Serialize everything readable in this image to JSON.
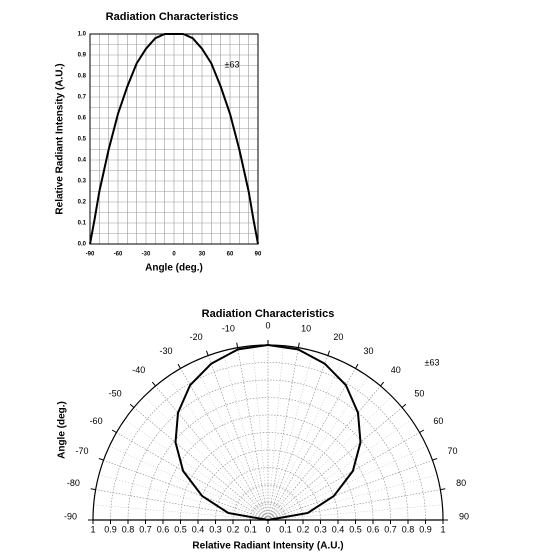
{
  "chart_data": [
    {
      "type": "line",
      "title": "Radiation Characteristics",
      "xlabel": "Angle (deg.)",
      "ylabel": "Relative Radiant Intensity (A.U.)",
      "annotation": "±63",
      "x": [
        -90,
        -85,
        -80,
        -70,
        -60,
        -50,
        -40,
        -30,
        -20,
        -10,
        0,
        10,
        20,
        30,
        40,
        50,
        60,
        70,
        80,
        85,
        90
      ],
      "series": [
        {
          "color": "#000000",
          "values": [
            0,
            0.12,
            0.25,
            0.45,
            0.62,
            0.75,
            0.86,
            0.93,
            0.98,
            1.0,
            1.0,
            1.0,
            0.98,
            0.93,
            0.86,
            0.75,
            0.62,
            0.45,
            0.25,
            0.12,
            0
          ]
        }
      ],
      "xlim": [
        -90,
        90
      ],
      "xticks": [
        -90,
        -60,
        -30,
        0,
        30,
        60,
        90
      ],
      "ylim": [
        0,
        1
      ],
      "yticks": [
        {
          "value": 0,
          "label": "0.0"
        },
        0.1,
        0.2,
        0.3,
        0.4,
        0.5,
        0.6,
        0.7,
        0.8,
        0.9,
        {
          "value": 1,
          "label": "1.0"
        }
      ],
      "grid": true
    },
    {
      "type": "polar",
      "title": "Radiation Characteristics",
      "rlabel": "Relative Radiant Intensity (A.U.)",
      "thetalabel": "Angle (deg.)",
      "annotation": "±63",
      "theta": [
        -90,
        -80,
        -70,
        -60,
        -50,
        -40,
        -30,
        -20,
        -10,
        0,
        10,
        20,
        30,
        40,
        50,
        60,
        70,
        80,
        90
      ],
      "series": [
        {
          "color": "#000000",
          "values": [
            0,
            0.23,
            0.4,
            0.56,
            0.69,
            0.8,
            0.89,
            0.95,
            0.99,
            1.0,
            0.99,
            0.95,
            0.89,
            0.8,
            0.69,
            0.56,
            0.4,
            0.23,
            0
          ]
        }
      ],
      "rlim": [
        0,
        1
      ],
      "rticks": [
        0,
        0.1,
        0.2,
        0.3,
        0.4,
        0.5,
        0.6,
        0.7,
        0.8,
        0.9,
        1
      ],
      "thetalim": [
        -90,
        90
      ],
      "thetaticks": [
        -90,
        -80,
        -70,
        -60,
        -50,
        -40,
        -30,
        -20,
        -10,
        0,
        10,
        20,
        30,
        40,
        50,
        60,
        70,
        80,
        90
      ],
      "grid": true
    }
  ]
}
